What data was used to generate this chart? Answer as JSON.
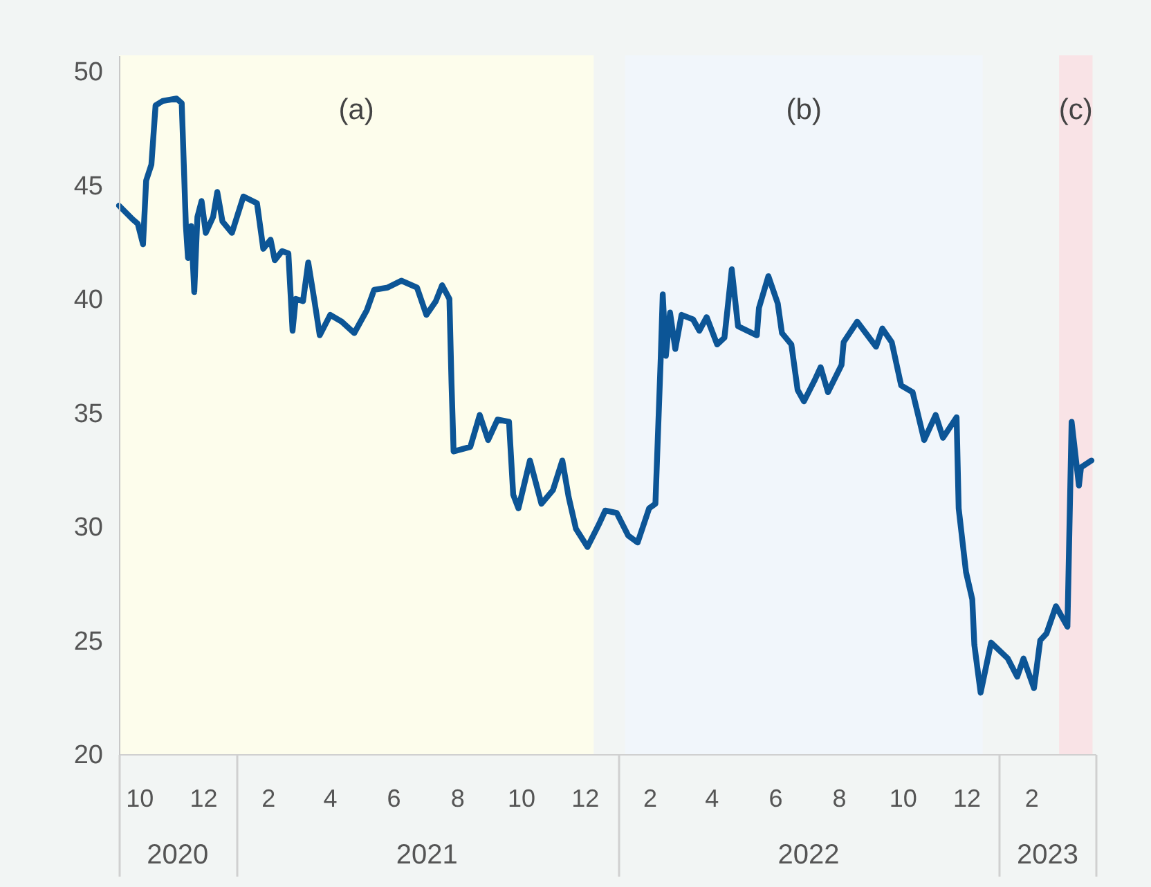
{
  "chart_data": {
    "type": "line",
    "x": [
      "2020-09-11",
      "2020-09-24",
      "2020-09-29",
      "2020-10-04",
      "2020-10-07",
      "2020-10-12",
      "2020-10-16",
      "2020-10-23",
      "2020-11-05",
      "2020-11-10",
      "2020-11-14",
      "2020-11-16",
      "2020-11-19",
      "2020-11-22",
      "2020-11-25",
      "2020-11-29",
      "2020-12-03",
      "2020-12-10",
      "2020-12-14",
      "2020-12-19",
      "2020-12-28",
      "2021-01-08",
      "2021-01-21",
      "2021-01-27",
      "2021-02-03",
      "2021-02-07",
      "2021-02-14",
      "2021-02-20",
      "2021-02-24",
      "2021-02-27",
      "2021-03-06",
      "2021-03-11",
      "2021-03-17",
      "2021-03-22",
      "2021-04-01",
      "2021-04-12",
      "2021-04-24",
      "2021-05-06",
      "2021-05-13",
      "2021-05-26",
      "2021-06-08",
      "2021-06-23",
      "2021-07-02",
      "2021-07-11",
      "2021-07-17",
      "2021-07-24",
      "2021-07-26",
      "2021-07-28",
      "2021-08-13",
      "2021-08-22",
      "2021-08-30",
      "2021-09-08",
      "2021-09-19",
      "2021-09-23",
      "2021-09-28",
      "2021-10-09",
      "2021-10-20",
      "2021-10-31",
      "2021-11-09",
      "2021-11-15",
      "2021-11-22",
      "2021-12-03",
      "2021-12-14",
      "2021-12-20",
      "2021-12-31",
      "2022-01-11",
      "2022-01-20",
      "2022-01-31",
      "2022-02-06",
      "2022-02-11",
      "2022-02-13",
      "2022-02-16",
      "2022-02-20",
      "2022-02-25",
      "2022-03-03",
      "2022-03-14",
      "2022-03-20",
      "2022-03-27",
      "2022-04-06",
      "2022-04-13",
      "2022-04-20",
      "2022-04-26",
      "2022-05-14",
      "2022-05-16",
      "2022-05-25",
      "2022-06-03",
      "2022-06-07",
      "2022-06-16",
      "2022-06-22",
      "2022-06-28",
      "2022-07-08",
      "2022-07-14",
      "2022-07-21",
      "2022-08-03",
      "2022-08-05",
      "2022-08-18",
      "2022-09-05",
      "2022-09-11",
      "2022-09-20",
      "2022-09-29",
      "2022-10-10",
      "2022-10-21",
      "2022-11-01",
      "2022-11-08",
      "2022-11-21",
      "2022-11-23",
      "2022-11-30",
      "2022-12-06",
      "2022-12-08",
      "2022-12-14",
      "2022-12-24",
      "2023-01-09",
      "2023-01-18",
      "2023-01-24",
      "2023-02-03",
      "2023-02-09",
      "2023-02-15",
      "2023-02-24",
      "2023-03-07",
      "2023-03-11",
      "2023-03-18",
      "2023-03-20",
      "2023-03-30"
    ],
    "series": [
      {
        "color": "#0c5596",
        "values": [
          44.1,
          43.5,
          43.3,
          42.4,
          45.2,
          45.9,
          48.5,
          48.7,
          48.8,
          48.6,
          43.2,
          41.8,
          43.2,
          40.3,
          43.6,
          44.3,
          42.9,
          43.6,
          44.7,
          43.4,
          42.9,
          44.5,
          44.2,
          42.2,
          42.6,
          41.7,
          42.1,
          42.0,
          38.6,
          40.0,
          39.9,
          41.6,
          39.9,
          38.4,
          39.3,
          39.0,
          38.5,
          39.5,
          40.4,
          40.5,
          40.8,
          40.5,
          39.3,
          39.9,
          40.6,
          40.0,
          36.3,
          33.3,
          33.5,
          34.9,
          33.8,
          34.7,
          34.6,
          31.4,
          30.8,
          32.9,
          31.0,
          31.6,
          32.9,
          31.3,
          29.9,
          29.1,
          30.1,
          30.7,
          30.6,
          29.6,
          29.3,
          30.8,
          31.0,
          37.3,
          40.2,
          37.5,
          39.4,
          37.8,
          39.3,
          39.1,
          38.6,
          39.2,
          38.0,
          38.3,
          41.3,
          38.8,
          38.4,
          39.6,
          41.0,
          39.8,
          38.5,
          38.0,
          36.0,
          35.5,
          36.4,
          37.0,
          35.9,
          37.1,
          38.1,
          39.0,
          37.9,
          38.7,
          38.1,
          36.2,
          35.9,
          33.8,
          34.9,
          33.9,
          34.8,
          30.8,
          28.0,
          26.8,
          24.8,
          22.7,
          24.9,
          24.2,
          23.4,
          24.2,
          22.9,
          25.0,
          25.3,
          26.5,
          25.6,
          34.6,
          31.8,
          32.6,
          32.9
        ]
      }
    ],
    "xlim": [
      "2020-09-11",
      "2023-04-03"
    ],
    "xticks": [
      {
        "value": "2020-10-01",
        "label": "10"
      },
      {
        "value": "2020-12-01",
        "label": "12"
      },
      {
        "value": "2021-02-01",
        "label": "2"
      },
      {
        "value": "2021-04-01",
        "label": "4"
      },
      {
        "value": "2021-06-01",
        "label": "6"
      },
      {
        "value": "2021-08-01",
        "label": "8"
      },
      {
        "value": "2021-10-01",
        "label": "10"
      },
      {
        "value": "2021-12-01",
        "label": "12"
      },
      {
        "value": "2022-02-01",
        "label": "2"
      },
      {
        "value": "2022-04-01",
        "label": "4"
      },
      {
        "value": "2022-06-01",
        "label": "6"
      },
      {
        "value": "2022-08-01",
        "label": "8"
      },
      {
        "value": "2022-10-01",
        "label": "10"
      },
      {
        "value": "2022-12-01",
        "label": "12"
      },
      {
        "value": "2023-02-01",
        "label": "2"
      }
    ],
    "ylim": [
      20,
      50.7
    ],
    "yticks": [
      20,
      25,
      30,
      35,
      40,
      45,
      50
    ],
    "grid": false,
    "bands": [
      {
        "axis": "x",
        "from": "2020-09-11",
        "to": "2021-12-09",
        "label": "(a)",
        "color": "#fdfdec"
      },
      {
        "axis": "x",
        "from": "2022-01-08",
        "to": "2022-12-16",
        "label": "(b)",
        "color": "#f1f6fb"
      },
      {
        "axis": "x",
        "from": "2023-02-27",
        "to": "2023-03-31",
        "label": "(c)",
        "color": "#f9e3e6"
      }
    ],
    "annotations": [
      "2020",
      "2021",
      "2022",
      "2023"
    ]
  }
}
